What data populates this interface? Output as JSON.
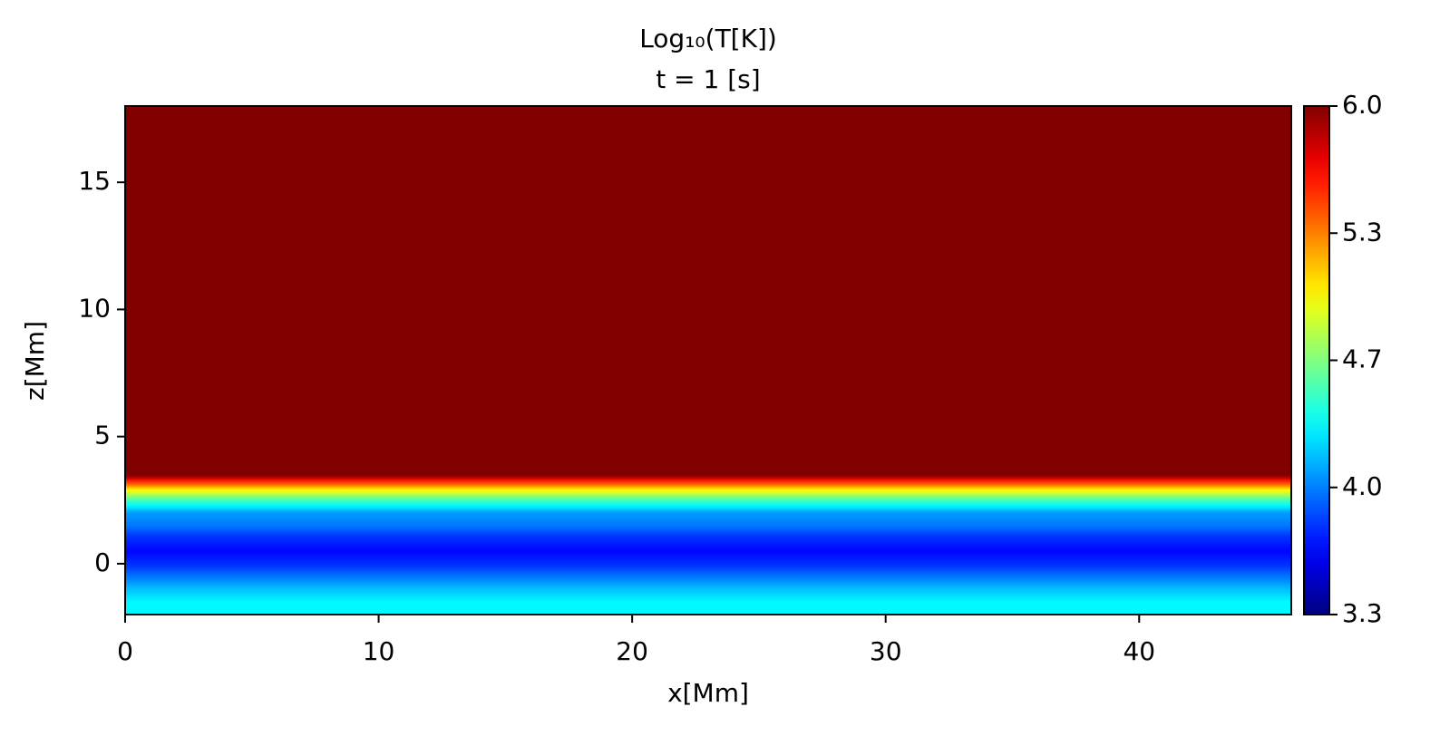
{
  "chart_data": {
    "type": "heatmap",
    "title": "Log₁₀(T[K])",
    "subtitle": "t = 1 [s]",
    "xlabel": "x[Mm]",
    "ylabel": "z[Mm]",
    "xlim": [
      0,
      46
    ],
    "xticks": [
      0,
      10,
      20,
      30,
      40
    ],
    "ylim": [
      -2,
      18
    ],
    "yticks": [
      0,
      5,
      10,
      15
    ],
    "z": [
      -2,
      -1.5,
      -1,
      -0.5,
      0,
      0.5,
      1,
      1.5,
      2,
      2.3,
      2.6,
      2.9,
      3.2,
      3.5,
      18
    ],
    "values": [
      4.3,
      4.3,
      4.15,
      3.95,
      3.75,
      3.65,
      3.75,
      3.95,
      4.05,
      4.3,
      4.6,
      5.0,
      5.5,
      6.0,
      6.0
    ],
    "colormap": "jet",
    "clim": [
      3.3,
      6
    ],
    "cticks": [
      3.3,
      {
        "value": 3.975,
        "label": "4.0"
      },
      {
        "value": 4.65,
        "label": "4.7"
      },
      {
        "value": 5.325,
        "label": "5.3"
      },
      {
        "value": 6,
        "label": "6.0"
      }
    ]
  }
}
